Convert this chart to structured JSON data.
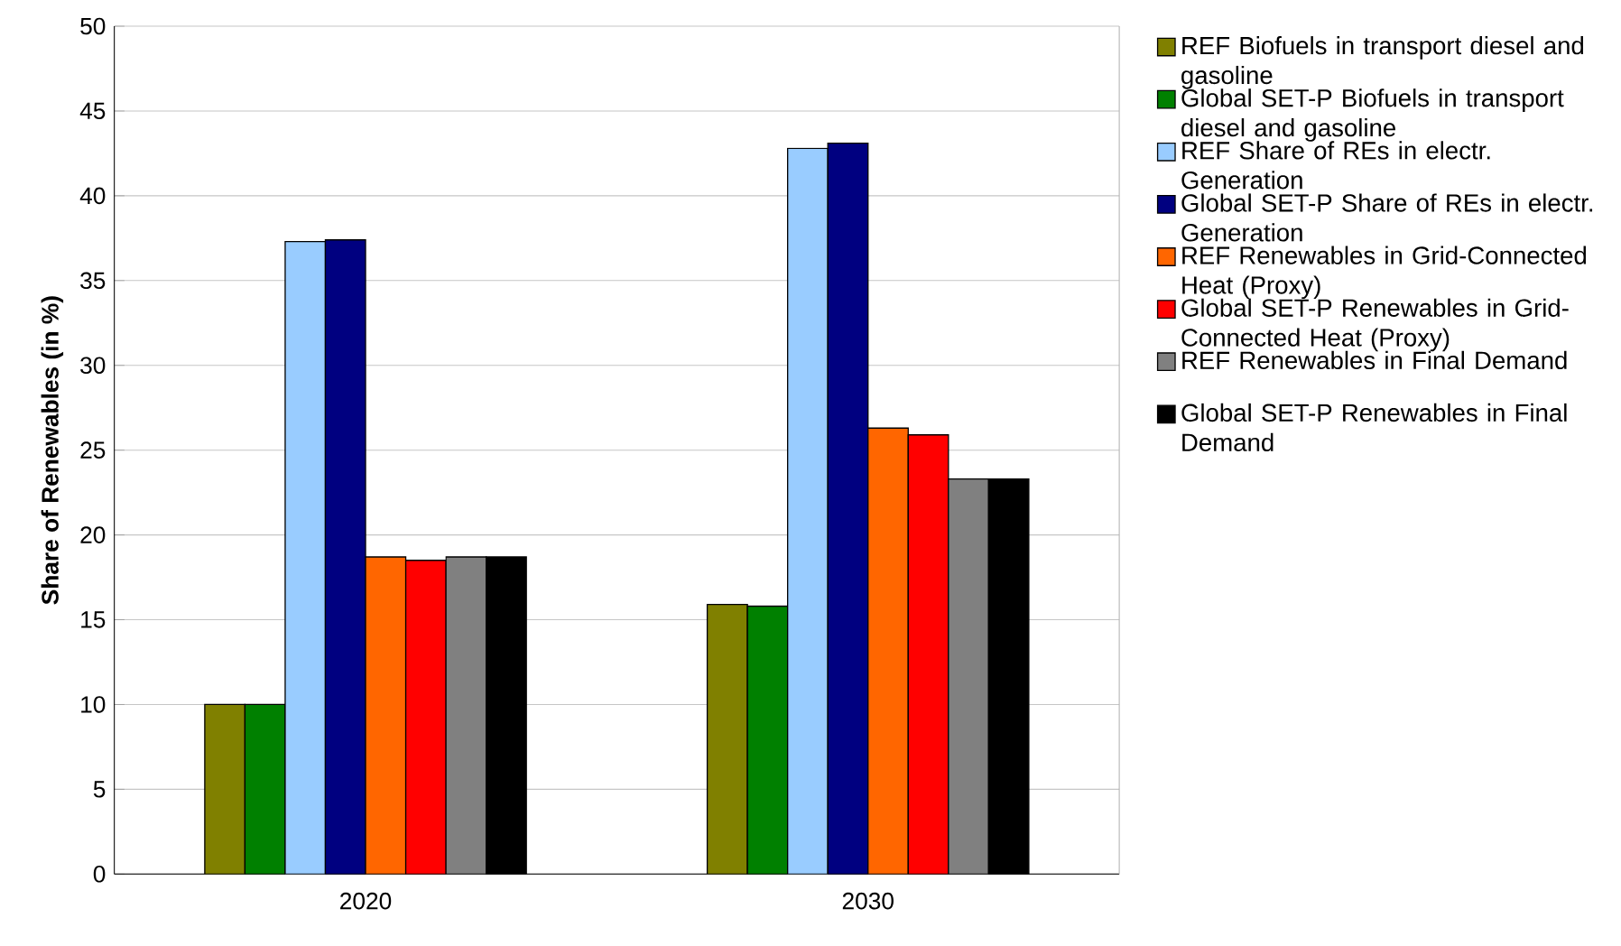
{
  "chart_data": {
    "type": "bar",
    "ylabel": "Share of Renewables (in %)",
    "categories": [
      "2020",
      "2030"
    ],
    "series": [
      {
        "name": "REF Biofuels in transport diesel and gasoline",
        "color": "#808000",
        "values": [
          10.0,
          15.9
        ]
      },
      {
        "name": "Global SET-P Biofuels in transport diesel and gasoline",
        "color": "#008000",
        "values": [
          10.0,
          15.8
        ]
      },
      {
        "name": "REF Share of REs in electr. Generation",
        "color": "#99ccff",
        "values": [
          37.3,
          42.8
        ]
      },
      {
        "name": "Global SET-P Share of REs in electr. Generation",
        "color": "#000080",
        "values": [
          37.4,
          43.1
        ]
      },
      {
        "name": "REF Renewables in Grid-Connected Heat (Proxy)",
        "color": "#ff6600",
        "values": [
          18.7,
          26.3
        ]
      },
      {
        "name": "Global SET-P Renewables in Grid-Connected Heat (Proxy)",
        "color": "#ff0000",
        "values": [
          18.5,
          25.9
        ]
      },
      {
        "name": "REF Renewables in Final Demand",
        "color": "#808080",
        "values": [
          18.7,
          23.3
        ]
      },
      {
        "name": "Global SET-P Renewables in Final Demand",
        "color": "#000000",
        "values": [
          18.7,
          23.3
        ]
      }
    ],
    "ylim": [
      0,
      50
    ],
    "yticks": [
      0,
      5,
      10,
      15,
      20,
      25,
      30,
      35,
      40,
      45,
      50
    ],
    "grid": "y",
    "legend": "right"
  }
}
